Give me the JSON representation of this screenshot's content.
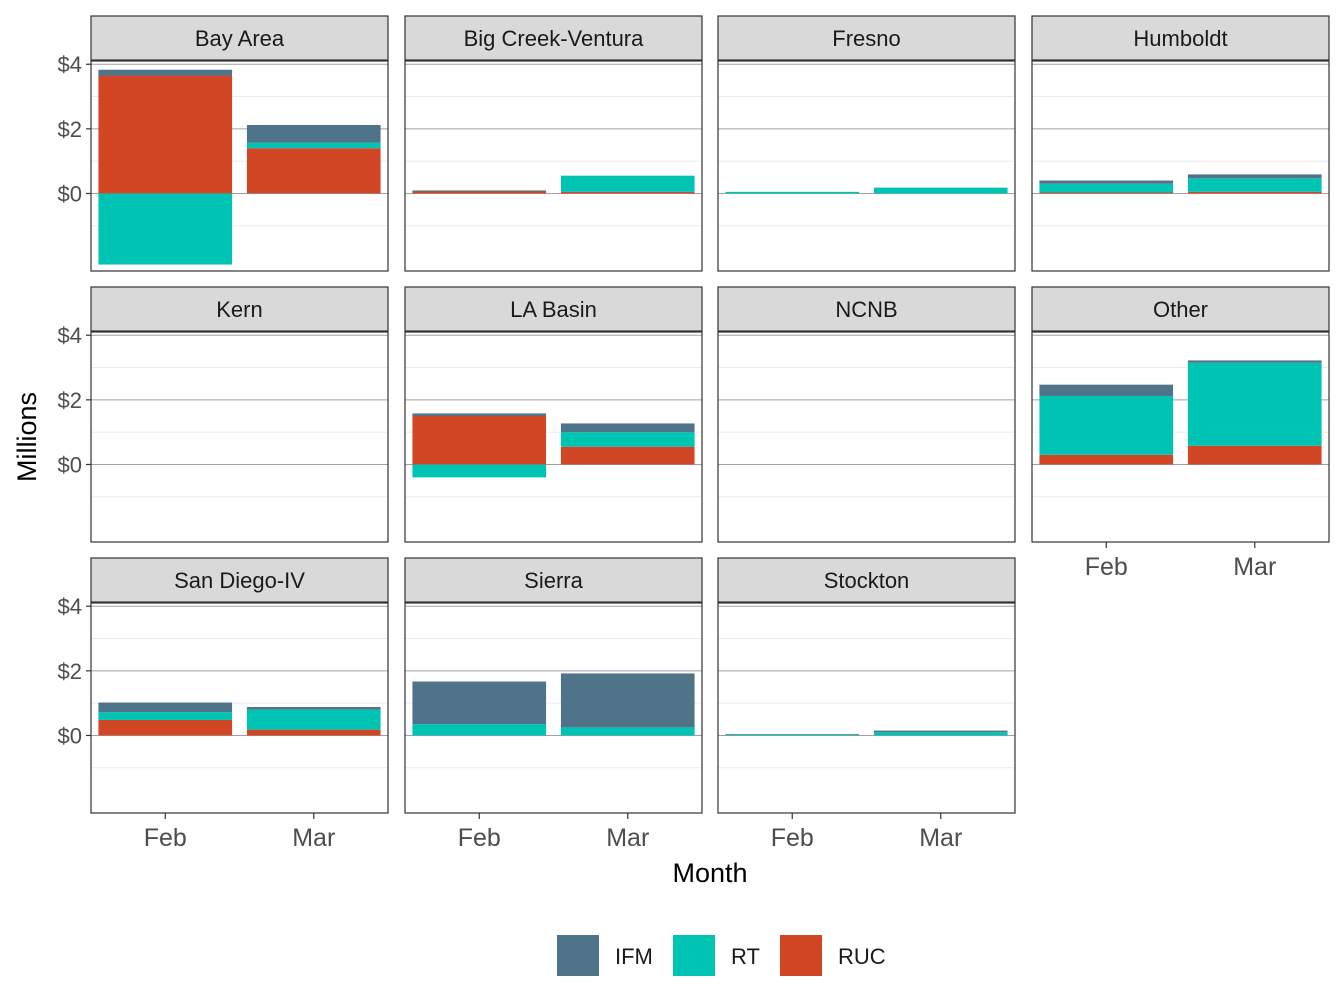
{
  "chart_data": {
    "type": "bar",
    "stacked": true,
    "faceted": true,
    "xlabel": "Month",
    "ylabel": "Millions",
    "categories": [
      "Feb",
      "Mar"
    ],
    "y_ticks": [
      {
        "value": 0,
        "label": "$0"
      },
      {
        "value": 2,
        "label": "$2"
      },
      {
        "value": 4,
        "label": "$4"
      }
    ],
    "ylim": [
      -2.4,
      4.1
    ],
    "grid": true,
    "legend_position": "bottom",
    "series_order": [
      "IFM",
      "RT",
      "RUC"
    ],
    "colors": {
      "IFM": "#4f7489",
      "RT": "#00c4b3",
      "RUC": "#d14624"
    },
    "facets": [
      {
        "name": "Bay Area",
        "data": {
          "Feb": {
            "RUC": 3.65,
            "RT": -2.2,
            "IFM": 0.18
          },
          "Mar": {
            "RUC": 1.4,
            "RT": 0.17,
            "IFM": 0.55
          }
        }
      },
      {
        "name": "Big Creek-Ventura",
        "data": {
          "Feb": {
            "RUC": 0.08,
            "RT": 0.02,
            "IFM": 0.0
          },
          "Mar": {
            "RUC": 0.05,
            "RT": 0.5,
            "IFM": 0.0
          }
        }
      },
      {
        "name": "Fresno",
        "data": {
          "Feb": {
            "RUC": 0.0,
            "RT": 0.05,
            "IFM": 0.0
          },
          "Mar": {
            "RUC": 0.0,
            "RT": 0.18,
            "IFM": 0.0
          }
        }
      },
      {
        "name": "Humboldt",
        "data": {
          "Feb": {
            "RUC": 0.03,
            "RT": 0.27,
            "IFM": 0.1
          },
          "Mar": {
            "RUC": 0.05,
            "RT": 0.42,
            "IFM": 0.12
          }
        }
      },
      {
        "name": "Kern",
        "data": {
          "Feb": {
            "RUC": 0.0,
            "RT": 0.0,
            "IFM": 0.0
          },
          "Mar": {
            "RUC": 0.0,
            "RT": 0.0,
            "IFM": 0.0
          }
        }
      },
      {
        "name": "LA Basin",
        "data": {
          "Feb": {
            "RUC": 1.5,
            "RT": -0.4,
            "IFM": 0.08
          },
          "Mar": {
            "RUC": 0.55,
            "RT": 0.45,
            "IFM": 0.27
          }
        }
      },
      {
        "name": "NCNB",
        "data": {
          "Feb": {
            "RUC": 0.0,
            "RT": 0.0,
            "IFM": 0.0
          },
          "Mar": {
            "RUC": 0.0,
            "RT": 0.0,
            "IFM": 0.0
          }
        }
      },
      {
        "name": "Other",
        "data": {
          "Feb": {
            "RUC": 0.3,
            "RT": 1.82,
            "IFM": 0.35
          },
          "Mar": {
            "RUC": 0.58,
            "RT": 2.57,
            "IFM": 0.07
          }
        }
      },
      {
        "name": "San Diego-IV",
        "data": {
          "Feb": {
            "RUC": 0.48,
            "RT": 0.24,
            "IFM": 0.3
          },
          "Mar": {
            "RUC": 0.18,
            "RT": 0.62,
            "IFM": 0.08
          }
        }
      },
      {
        "name": "Sierra",
        "data": {
          "Feb": {
            "RUC": 0.0,
            "RT": 0.35,
            "IFM": 1.32
          },
          "Mar": {
            "RUC": 0.0,
            "RT": 0.25,
            "IFM": 1.67
          }
        }
      },
      {
        "name": "Stockton",
        "data": {
          "Feb": {
            "RUC": 0.0,
            "RT": 0.03,
            "IFM": 0.01
          },
          "Mar": {
            "RUC": 0.0,
            "RT": 0.1,
            "IFM": 0.05
          }
        }
      }
    ]
  }
}
